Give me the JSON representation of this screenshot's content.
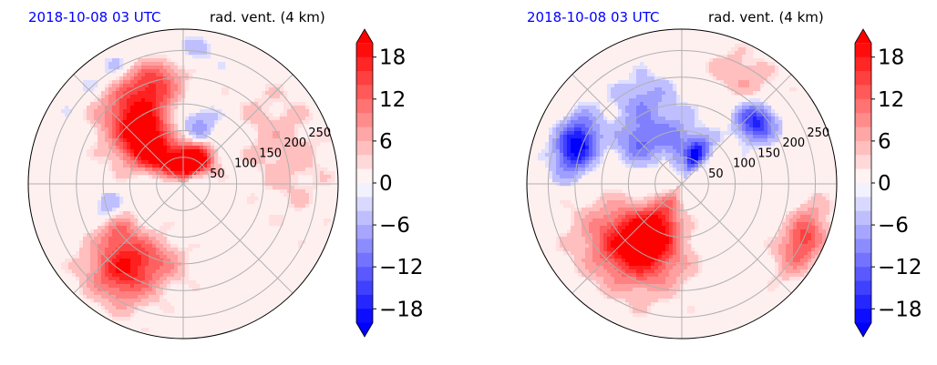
{
  "chart_data": [
    {
      "type": "heatmap",
      "projection": "polar",
      "title_left": "2018-10-08 03 UTC",
      "title_right": "rad. vent. (4 km)",
      "title_left_color": "#0000ff",
      "radial_ticks": [
        50,
        100,
        150,
        200,
        250
      ],
      "rmax": 290,
      "angular_gridlines_deg": [
        0,
        45,
        90,
        135,
        180,
        225,
        270,
        315
      ],
      "grid": true,
      "colorbar": {
        "ticks": [
          "18",
          "12",
          "6",
          "0",
          "−6",
          "−12",
          "−18"
        ],
        "tick_values": [
          18,
          12,
          6,
          0,
          -6,
          -12,
          -18
        ],
        "range": [
          -20,
          20
        ],
        "extend": "both",
        "colormap": "bwr"
      },
      "features": [
        {
          "kind": "pos",
          "theta": 125,
          "r": 140,
          "sr": 60,
          "st": 14,
          "amp": 18
        },
        {
          "kind": "pos",
          "theta": 140,
          "r": 90,
          "sr": 40,
          "st": 16,
          "amp": 16
        },
        {
          "kind": "pos",
          "theta": 105,
          "r": 210,
          "sr": 45,
          "st": 10,
          "amp": 12
        },
        {
          "kind": "pos",
          "theta": 90,
          "r": 40,
          "sr": 25,
          "st": 30,
          "amp": 20
        },
        {
          "kind": "pos",
          "theta": 60,
          "r": 50,
          "sr": 20,
          "st": 20,
          "amp": 18
        },
        {
          "kind": "pos",
          "theta": 235,
          "r": 200,
          "sr": 40,
          "st": 12,
          "amp": 16
        },
        {
          "kind": "pos",
          "theta": 215,
          "r": 150,
          "sr": 25,
          "st": 10,
          "amp": 10
        },
        {
          "kind": "pos",
          "theta": 250,
          "r": 150,
          "sr": 30,
          "st": 15,
          "amp": 8
        },
        {
          "kind": "pos",
          "theta": 20,
          "r": 200,
          "sr": 50,
          "st": 25,
          "amp": 4
        },
        {
          "kind": "neg",
          "theta": 110,
          "r": 250,
          "sr": 25,
          "st": 20,
          "amp": 8
        },
        {
          "kind": "neg",
          "theta": 75,
          "r": 110,
          "sr": 30,
          "st": 12,
          "amp": 6
        },
        {
          "kind": "neg",
          "theta": 200,
          "r": 150,
          "sr": 20,
          "st": 10,
          "amp": 6
        }
      ]
    },
    {
      "type": "heatmap",
      "projection": "polar",
      "title_left": "2018-10-08 03 UTC",
      "title_right": "rad. vent. (4 km)",
      "title_left_color": "#0000ff",
      "radial_ticks": [
        50,
        100,
        150,
        200,
        250
      ],
      "rmax": 290,
      "angular_gridlines_deg": [
        0,
        45,
        90,
        135,
        180,
        225,
        270,
        315
      ],
      "grid": true,
      "colorbar": {
        "ticks": [
          "18",
          "12",
          "6",
          "0",
          "−6",
          "−12",
          "−18"
        ],
        "tick_values": [
          18,
          12,
          6,
          0,
          -6,
          -12,
          -18
        ],
        "range": [
          -20,
          20
        ],
        "extend": "both",
        "colormap": "bwr"
      },
      "features": [
        {
          "kind": "pos",
          "theta": 240,
          "r": 110,
          "sr": 55,
          "st": 20,
          "amp": 20
        },
        {
          "kind": "pos",
          "theta": 225,
          "r": 160,
          "sr": 50,
          "st": 20,
          "amp": 10
        },
        {
          "kind": "pos",
          "theta": 335,
          "r": 250,
          "sr": 25,
          "st": 10,
          "amp": 14
        },
        {
          "kind": "pos",
          "theta": 60,
          "r": 230,
          "sr": 30,
          "st": 12,
          "amp": 5
        },
        {
          "kind": "neg",
          "theta": 160,
          "r": 210,
          "sr": 25,
          "st": 10,
          "amp": 20
        },
        {
          "kind": "neg",
          "theta": 135,
          "r": 110,
          "sr": 30,
          "st": 15,
          "amp": 10
        },
        {
          "kind": "neg",
          "theta": 100,
          "r": 80,
          "sr": 40,
          "st": 15,
          "amp": 8
        },
        {
          "kind": "neg",
          "theta": 65,
          "r": 60,
          "sr": 25,
          "st": 12,
          "amp": 18
        },
        {
          "kind": "neg",
          "theta": 40,
          "r": 180,
          "sr": 25,
          "st": 8,
          "amp": 16
        },
        {
          "kind": "neg",
          "theta": 115,
          "r": 175,
          "sr": 30,
          "st": 12,
          "amp": 6
        }
      ]
    }
  ]
}
